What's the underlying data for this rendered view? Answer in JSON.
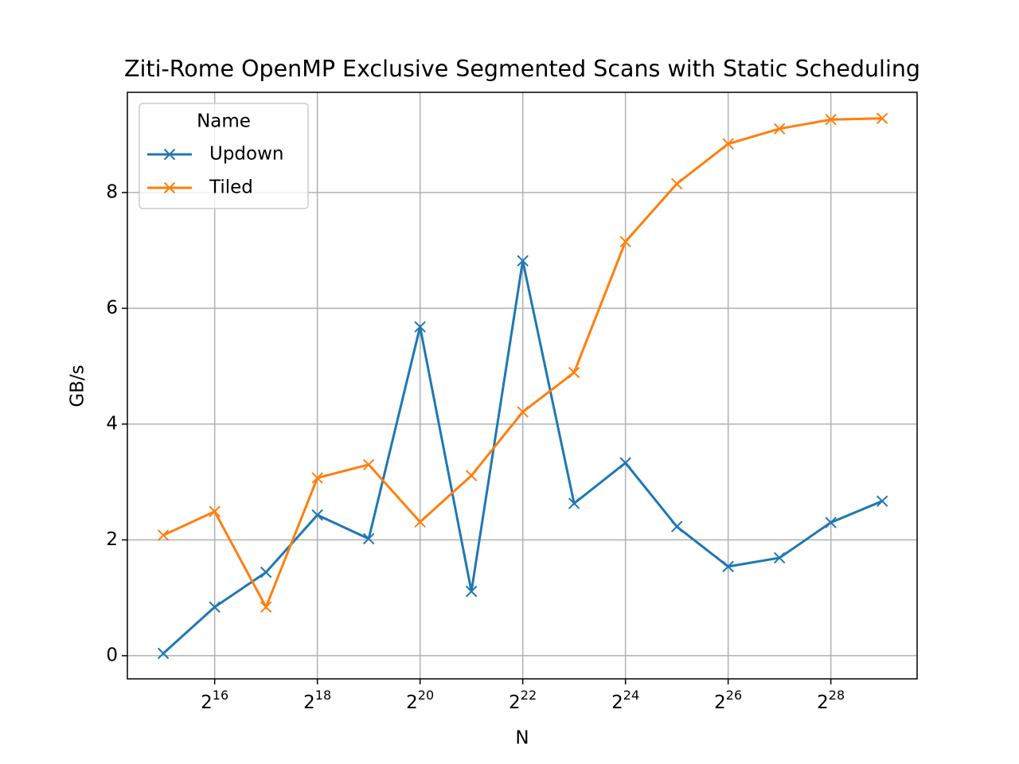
{
  "chart_data": {
    "type": "line",
    "title": "Ziti-Rome OpenMP Exclusive Segmented Scans with Static Scheduling",
    "x_label": "N",
    "y_label": "GB/s",
    "x_scale": "log2",
    "x": [
      32768,
      65536,
      131072,
      262144,
      524288,
      1048576,
      2097152,
      4194304,
      8388608,
      16777216,
      33554432,
      67108864,
      134217728,
      268435456,
      536870912
    ],
    "series": [
      {
        "name": "Updown",
        "color": "#1f77b4",
        "marker": "x",
        "values": [
          0.04,
          0.84,
          1.44,
          2.43,
          2.02,
          5.68,
          1.11,
          6.82,
          2.63,
          3.33,
          2.23,
          1.54,
          1.69,
          2.3,
          2.67
        ]
      },
      {
        "name": "Tiled",
        "color": "#ff7f0e",
        "marker": "x",
        "values": [
          2.08,
          2.49,
          0.84,
          3.07,
          3.3,
          2.31,
          3.11,
          4.21,
          4.89,
          7.15,
          8.15,
          8.84,
          9.1,
          9.26,
          9.28
        ]
      }
    ],
    "xlim": [
      20170,
      860000000
    ],
    "ylim": [
      -0.4,
      9.73
    ],
    "xticks": [
      {
        "value": 65536,
        "label": "2^16"
      },
      {
        "value": 262144,
        "label": "2^18"
      },
      {
        "value": 1048576,
        "label": "2^20"
      },
      {
        "value": 4194304,
        "label": "2^22"
      },
      {
        "value": 16777216,
        "label": "2^24"
      },
      {
        "value": 67108864,
        "label": "2^26"
      },
      {
        "value": 268435456,
        "label": "2^28"
      }
    ],
    "yticks": [
      0,
      2,
      4,
      6,
      8
    ],
    "grid": true,
    "legend_title": "Name",
    "legend_position": "upper-left"
  }
}
